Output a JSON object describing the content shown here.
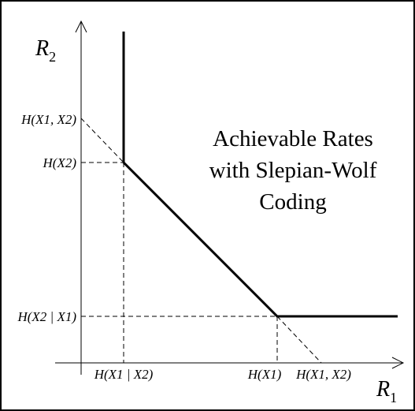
{
  "diagram": {
    "region_label_lines": [
      "Achievable Rates",
      "with Slepian-Wolf",
      "Coding"
    ],
    "y_axis_label": "R",
    "y_axis_label_sub": "2",
    "x_axis_label": "R",
    "x_axis_label_sub": "1",
    "y_ticks": {
      "joint": "H(X1, X2)",
      "marginal": "H(X2)",
      "conditional": "H(X2 | X1)"
    },
    "x_ticks": {
      "conditional": "H(X1 | X2)",
      "marginal": "H(X1)",
      "joint": "H(X1, X2)"
    },
    "colors": {
      "boundary": "#000000",
      "guide": "#000000",
      "frame": "#000000"
    }
  }
}
